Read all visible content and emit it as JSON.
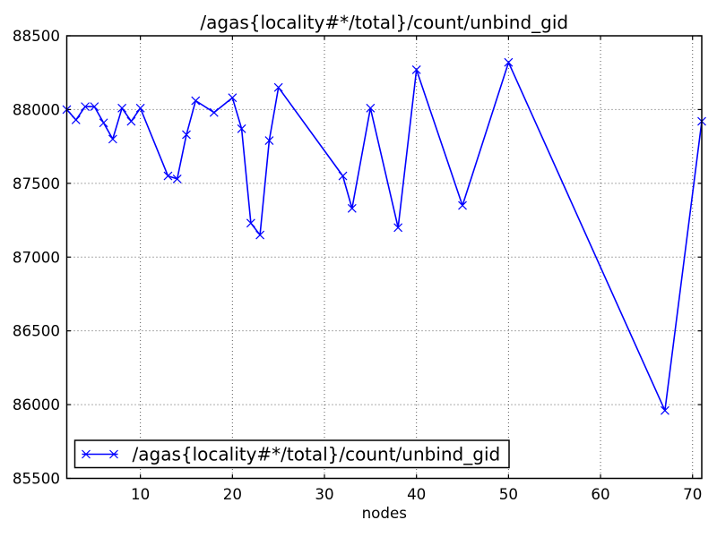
{
  "figure": {
    "background": "#ffffff",
    "plot_background": "#ffffff"
  },
  "chart_data": {
    "type": "line",
    "title": "/agas{locality#*/total}/count/unbind_gid",
    "xlabel": "nodes",
    "ylabel": "",
    "xlim": [
      2,
      71
    ],
    "ylim": [
      85500,
      88500
    ],
    "xticks": [
      10,
      20,
      30,
      40,
      50,
      60,
      70
    ],
    "yticks": [
      85500,
      86000,
      86500,
      87000,
      87500,
      88000,
      88500
    ],
    "grid": true,
    "grid_style": "dotted",
    "legend_position": "lower left",
    "series": [
      {
        "name": "/agas{locality#*/total}/count/unbind_gid",
        "color": "#0000ff",
        "marker": "x",
        "x": [
          2,
          3,
          4,
          5,
          6,
          7,
          8,
          9,
          10,
          13,
          14,
          15,
          16,
          18,
          20,
          21,
          22,
          23,
          24,
          25,
          32,
          33,
          35,
          38,
          40,
          45,
          50,
          67,
          71
        ],
        "y": [
          88000,
          87930,
          88020,
          88020,
          87910,
          87800,
          88010,
          87920,
          88010,
          87550,
          87530,
          87830,
          88060,
          87980,
          88080,
          87870,
          87230,
          87150,
          87790,
          88150,
          87550,
          87330,
          88010,
          87200,
          88270,
          87350,
          88320,
          85960,
          87920
        ]
      }
    ]
  }
}
